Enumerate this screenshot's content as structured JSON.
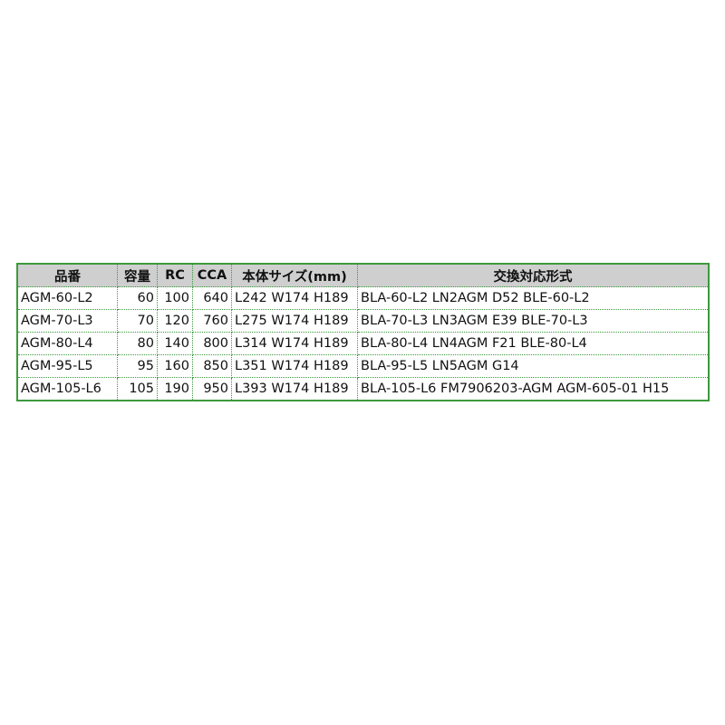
{
  "table": {
    "headers": [
      "品番",
      "容量",
      "RC",
      "CCA",
      "本体サイズ(mm)",
      "交換対応形式"
    ],
    "rows": [
      [
        "AGM-60-L2",
        "60",
        "100",
        "640",
        "L242 W174 H189",
        "BLA-60-L2 LN2AGM D52 BLE-60-L2"
      ],
      [
        "AGM-70-L3",
        "70",
        "120",
        "760",
        "L275 W174 H189",
        "BLA-70-L3 LN3AGM E39 BLE-70-L3"
      ],
      [
        "AGM-80-L4",
        "80",
        "140",
        "800",
        "L314 W174 H189",
        "BLA-80-L4 LN4AGM F21 BLE-80-L4"
      ],
      [
        "AGM-95-L5",
        "95",
        "160",
        "850",
        "L351 W174 H189",
        "BLA-95-L5 LN5AGM G14"
      ],
      [
        "AGM-105-L6",
        "105",
        "190",
        "950",
        "L393 W174 H189",
        "BLA-105-L6 FM7906203-AGM AGM-605-01 H15"
      ]
    ]
  },
  "colors": {
    "border": "#3c9a3c",
    "header_bg": "#cfcfcf"
  }
}
